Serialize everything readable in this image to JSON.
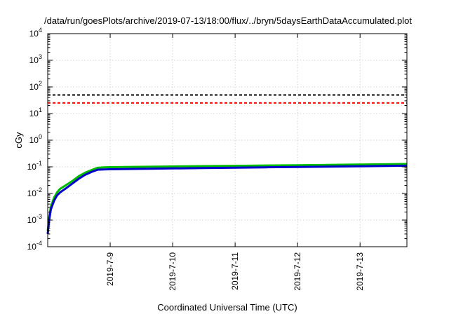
{
  "chart_data": {
    "type": "line",
    "title": "/data/run/goesPlots/archive/2019-07-13/18:00/flux/../bryn/5daysEarthDataAccumulated.plot",
    "xlabel": "Coordinated Universal Time (UTC)",
    "ylabel": "cGy",
    "y_scale": "log",
    "ylim": [
      0.0001,
      10000
    ],
    "xlim": [
      0,
      5.75
    ],
    "x_ticks": [
      {
        "label": "2019-7-9",
        "value": 1
      },
      {
        "label": "2019-7-10",
        "value": 2
      },
      {
        "label": "2019-7-11",
        "value": 3
      },
      {
        "label": "2019-7-12",
        "value": 4
      },
      {
        "label": "2019-7-13",
        "value": 5
      }
    ],
    "y_ticks": [
      {
        "base": "10",
        "exp": "-4",
        "value": 0.0001
      },
      {
        "base": "10",
        "exp": "-3",
        "value": 0.001
      },
      {
        "base": "10",
        "exp": "-2",
        "value": 0.01
      },
      {
        "base": "10",
        "exp": "-1",
        "value": 0.1
      },
      {
        "base": "10",
        "exp": "0",
        "value": 1
      },
      {
        "base": "10",
        "exp": "1",
        "value": 10
      },
      {
        "base": "10",
        "exp": "2",
        "value": 100
      },
      {
        "base": "10",
        "exp": "3",
        "value": 1000
      },
      {
        "base": "10",
        "exp": "4",
        "value": 10000
      }
    ],
    "grid": true,
    "reference_lines": [
      {
        "y": 50,
        "color": "#000000",
        "style": "dashed"
      },
      {
        "y": 25,
        "color": "#ff0000",
        "style": "dashed"
      }
    ],
    "series": [
      {
        "color": "#00bb00",
        "x": [
          0,
          0.02,
          0.05,
          0.1,
          0.15,
          0.2,
          0.3,
          0.4,
          0.5,
          0.6,
          0.7,
          0.8,
          0.9,
          1.0,
          1.5,
          2,
          2.5,
          3,
          3.5,
          4,
          4.5,
          5,
          5.5,
          5.75
        ],
        "y": [
          0.0004,
          0.0011,
          0.0032,
          0.0068,
          0.011,
          0.015,
          0.021,
          0.03,
          0.045,
          0.06,
          0.075,
          0.092,
          0.096,
          0.097,
          0.1,
          0.103,
          0.106,
          0.109,
          0.112,
          0.115,
          0.118,
          0.122,
          0.126,
          0.128
        ]
      },
      {
        "color": "#0000cc",
        "x": [
          0,
          0.02,
          0.05,
          0.1,
          0.15,
          0.2,
          0.3,
          0.4,
          0.5,
          0.6,
          0.7,
          0.8,
          0.9,
          1.0,
          1.5,
          2,
          2.5,
          3,
          3.5,
          4,
          4.5,
          5,
          5.5,
          5.75
        ],
        "y": [
          0.0003,
          0.0009,
          0.0025,
          0.0052,
          0.0085,
          0.011,
          0.016,
          0.024,
          0.036,
          0.05,
          0.064,
          0.078,
          0.08,
          0.081,
          0.084,
          0.087,
          0.09,
          0.093,
          0.096,
          0.099,
          0.102,
          0.105,
          0.109,
          0.11
        ]
      }
    ]
  }
}
